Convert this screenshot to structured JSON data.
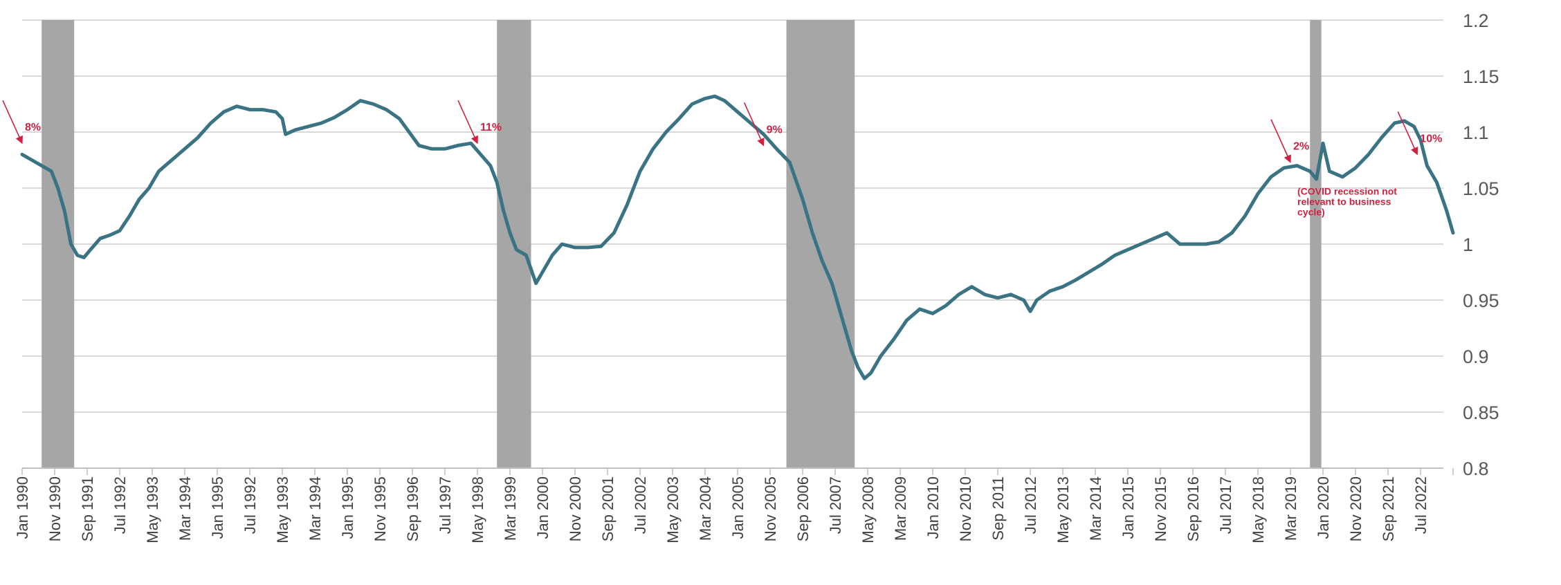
{
  "chart_data": {
    "type": "line",
    "title": "",
    "xlabel": "",
    "ylabel": "",
    "ylim": [
      0.8,
      1.2
    ],
    "y_axis_side": "right",
    "grid": "horizontal",
    "yticks": [
      "0.8",
      "0.85",
      "0.9",
      "0.95",
      "1",
      "1.05",
      "1.1",
      "1.15",
      "1.2"
    ],
    "xtick_labels": [
      "Jan 1990",
      "Nov 1990",
      "Sep 1991",
      "Jul 1992",
      "May 1993",
      "Mar 1994",
      "Jan 1995",
      "Jul 1992",
      "May 1993",
      "Mar 1994",
      "Jan 1995",
      "Nov 1995",
      "Sep 1996",
      "Jul 1997",
      "May 1998",
      "Mar 1999",
      "Jan 2000",
      "Nov 2000",
      "Sep 2001",
      "Jul 2002",
      "May 2003",
      "Mar 2004",
      "Jan 2005",
      "Nov 2005",
      "Sep 2006",
      "Jul 2007",
      "May 2008",
      "Mar 2009",
      "Jan 2010",
      "Nov 2010",
      "Sep 2011",
      "Jul 2012",
      "May 2013",
      "Mar 2014",
      "Jan 2015",
      "Nov 2015",
      "Sep 2016",
      "Jul 2017",
      "May 2018",
      "Mar 2019",
      "Jan 2020",
      "Nov 2020",
      "Sep 2021",
      "Jul 2022"
    ],
    "line_color": "#3a7384",
    "recession_color": "#a6a6a6",
    "annotation_color": "#d0213f",
    "recessions": [
      {
        "start": 0.6,
        "end": 1.6
      },
      {
        "start": 14.6,
        "end": 15.65
      },
      {
        "start": 23.5,
        "end": 25.6
      },
      {
        "start": 39.6,
        "end": 39.95
      }
    ],
    "series": [
      {
        "points": [
          [
            0.0,
            1.08
          ],
          [
            0.3,
            1.075
          ],
          [
            0.6,
            1.07
          ],
          [
            0.9,
            1.065
          ],
          [
            1.1,
            1.05
          ],
          [
            1.3,
            1.03
          ],
          [
            1.5,
            1.0
          ],
          [
            1.7,
            0.99
          ],
          [
            1.9,
            0.988
          ],
          [
            2.1,
            0.995
          ],
          [
            2.4,
            1.005
          ],
          [
            2.7,
            1.008
          ],
          [
            3.0,
            1.012
          ],
          [
            3.3,
            1.025
          ],
          [
            3.6,
            1.04
          ],
          [
            3.9,
            1.05
          ],
          [
            4.2,
            1.065
          ],
          [
            4.6,
            1.075
          ],
          [
            5.0,
            1.085
          ],
          [
            5.4,
            1.095
          ],
          [
            5.8,
            1.108
          ],
          [
            6.2,
            1.118
          ],
          [
            6.6,
            1.123
          ],
          [
            7.0,
            1.12
          ],
          [
            7.4,
            1.12
          ],
          [
            7.8,
            1.118
          ],
          [
            8.0,
            1.112
          ],
          [
            8.1,
            1.098
          ],
          [
            8.4,
            1.102
          ],
          [
            8.8,
            1.105
          ],
          [
            9.2,
            1.108
          ],
          [
            9.6,
            1.113
          ],
          [
            10.0,
            1.12
          ],
          [
            10.4,
            1.128
          ],
          [
            10.8,
            1.125
          ],
          [
            11.2,
            1.12
          ],
          [
            11.6,
            1.112
          ],
          [
            11.9,
            1.1
          ],
          [
            12.2,
            1.088
          ],
          [
            12.6,
            1.085
          ],
          [
            13.0,
            1.085
          ],
          [
            13.4,
            1.088
          ],
          [
            13.8,
            1.09
          ],
          [
            14.1,
            1.08
          ],
          [
            14.4,
            1.07
          ],
          [
            14.6,
            1.055
          ],
          [
            14.8,
            1.03
          ],
          [
            15.0,
            1.01
          ],
          [
            15.2,
            0.995
          ],
          [
            15.5,
            0.99
          ],
          [
            15.8,
            0.965
          ],
          [
            16.0,
            0.975
          ],
          [
            16.3,
            0.99
          ],
          [
            16.6,
            1.0
          ],
          [
            17.0,
            0.997
          ],
          [
            17.4,
            0.997
          ],
          [
            17.8,
            0.998
          ],
          [
            18.2,
            1.01
          ],
          [
            18.6,
            1.035
          ],
          [
            19.0,
            1.065
          ],
          [
            19.4,
            1.085
          ],
          [
            19.8,
            1.1
          ],
          [
            20.2,
            1.112
          ],
          [
            20.6,
            1.125
          ],
          [
            21.0,
            1.13
          ],
          [
            21.3,
            1.132
          ],
          [
            21.6,
            1.128
          ],
          [
            22.0,
            1.118
          ],
          [
            22.4,
            1.108
          ],
          [
            22.8,
            1.098
          ],
          [
            23.2,
            1.085
          ],
          [
            23.6,
            1.073
          ],
          [
            24.0,
            1.04
          ],
          [
            24.3,
            1.01
          ],
          [
            24.6,
            0.985
          ],
          [
            24.9,
            0.965
          ],
          [
            25.1,
            0.945
          ],
          [
            25.3,
            0.925
          ],
          [
            25.5,
            0.905
          ],
          [
            25.7,
            0.89
          ],
          [
            25.9,
            0.88
          ],
          [
            26.1,
            0.885
          ],
          [
            26.4,
            0.9
          ],
          [
            26.8,
            0.915
          ],
          [
            27.2,
            0.932
          ],
          [
            27.6,
            0.942
          ],
          [
            28.0,
            0.938
          ],
          [
            28.4,
            0.945
          ],
          [
            28.8,
            0.955
          ],
          [
            29.2,
            0.962
          ],
          [
            29.6,
            0.955
          ],
          [
            30.0,
            0.952
          ],
          [
            30.4,
            0.955
          ],
          [
            30.8,
            0.95
          ],
          [
            31.0,
            0.94
          ],
          [
            31.2,
            0.95
          ],
          [
            31.6,
            0.958
          ],
          [
            32.0,
            0.962
          ],
          [
            32.4,
            0.968
          ],
          [
            32.8,
            0.975
          ],
          [
            33.2,
            0.982
          ],
          [
            33.6,
            0.99
          ],
          [
            34.0,
            0.995
          ],
          [
            34.4,
            1.0
          ],
          [
            34.8,
            1.005
          ],
          [
            35.2,
            1.01
          ],
          [
            35.6,
            1.0
          ],
          [
            36.0,
            1.0
          ],
          [
            36.4,
            1.0
          ],
          [
            36.8,
            1.002
          ],
          [
            37.2,
            1.01
          ],
          [
            37.6,
            1.025
          ],
          [
            38.0,
            1.045
          ],
          [
            38.4,
            1.06
          ],
          [
            38.8,
            1.068
          ],
          [
            39.2,
            1.07
          ],
          [
            39.6,
            1.065
          ],
          [
            39.8,
            1.058
          ],
          [
            40.0,
            1.09
          ],
          [
            40.2,
            1.065
          ],
          [
            40.6,
            1.06
          ],
          [
            41.0,
            1.068
          ],
          [
            41.4,
            1.08
          ],
          [
            41.8,
            1.095
          ],
          [
            42.2,
            1.108
          ],
          [
            42.5,
            1.11
          ],
          [
            42.8,
            1.105
          ],
          [
            43.0,
            1.093
          ],
          [
            43.2,
            1.07
          ],
          [
            43.5,
            1.055
          ],
          [
            43.8,
            1.03
          ],
          [
            44.0,
            1.01
          ]
        ]
      }
    ],
    "annotations": [
      {
        "text": "8%",
        "x": 0.0,
        "y": 1.09
      },
      {
        "text": "11%",
        "x": 14.0,
        "y": 1.09
      },
      {
        "text": "9%",
        "x": 22.8,
        "y": 1.088
      },
      {
        "text": "2%",
        "x": 39.0,
        "y": 1.073
      },
      {
        "text": "10%",
        "x": 42.9,
        "y": 1.08
      }
    ],
    "note": {
      "x": 39.0,
      "y": 1.044,
      "lines": [
        "(COVID recession not",
        "relevant to business",
        "cycle)"
      ]
    }
  }
}
